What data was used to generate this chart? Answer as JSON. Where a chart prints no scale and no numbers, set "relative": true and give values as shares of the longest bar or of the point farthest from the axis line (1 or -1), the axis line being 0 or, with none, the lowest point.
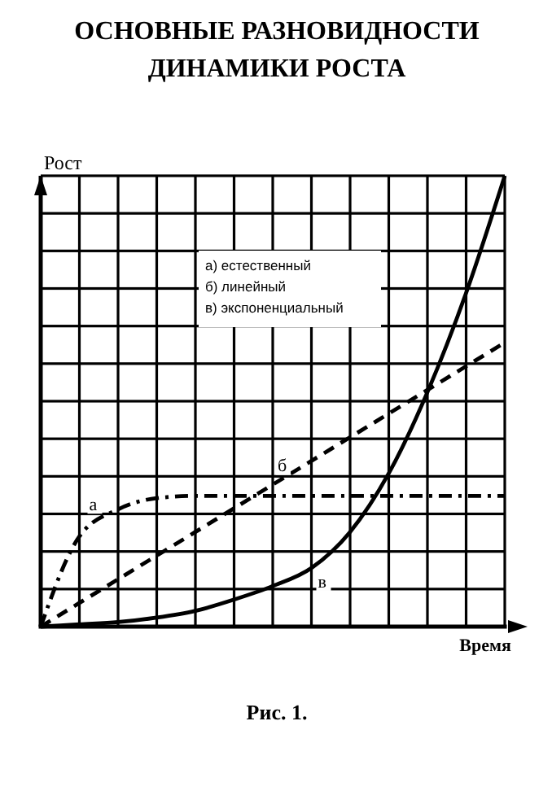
{
  "chart_data": {
    "type": "line",
    "title": "ОСНОВНЫЕ РАЗНОВИДНОСТИ\nДИНАМИКИ РОСТА",
    "xlabel": "Время",
    "ylabel": "Рост",
    "relative": true,
    "grid": true,
    "categories": [
      null,
      null,
      null,
      null,
      null,
      null,
      null,
      null,
      null,
      null,
      null,
      null,
      null
    ],
    "series": [
      {
        "name": "а",
        "color": "#000000",
        "line_style": "dashdot",
        "values": [
          0,
          0.2,
          0.26,
          0.285,
          0.29,
          0.29,
          0.29,
          0.29,
          0.29,
          0.29,
          0.29,
          0.29,
          0.29
        ]
      },
      {
        "name": "б",
        "color": "#000000",
        "line_style": "dashed",
        "values": [
          0,
          0.0525,
          0.105,
          0.1575,
          0.21,
          0.2625,
          0.315,
          0.3675,
          0.42,
          0.4725,
          0.525,
          0.5775,
          0.63
        ]
      },
      {
        "name": "в",
        "color": "#000000",
        "line_style": "solid",
        "values": [
          0,
          0.005,
          0.01,
          0.02,
          0.035,
          0.06,
          0.09,
          0.13,
          0.21,
          0.34,
          0.52,
          0.74,
          1
        ]
      }
    ],
    "annotations": [
      "а) естественный",
      "б) линейный",
      "в) экспоненциальный",
      "Рис. 1."
    ]
  }
}
